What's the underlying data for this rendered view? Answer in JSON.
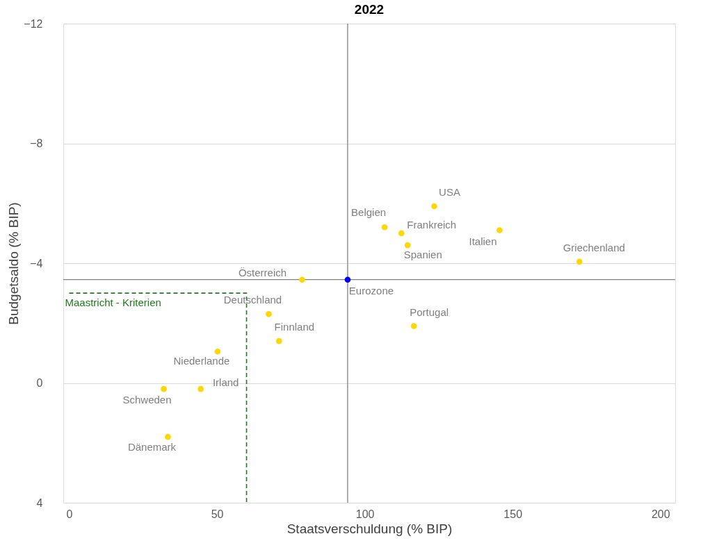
{
  "chart_data": {
    "type": "scatter",
    "title": "2022",
    "xlabel": "Staatsverschuldung (% BIP)",
    "ylabel": "Budgetsaldo (% BIP)",
    "xlim": [
      -2,
      205
    ],
    "xticks": [
      0,
      50,
      100,
      150,
      200
    ],
    "ylim": [
      4,
      -12
    ],
    "yticks": [
      4,
      0,
      -4,
      -8,
      -12
    ],
    "grid": "y",
    "marker": "circle",
    "series": [
      {
        "name": "USA",
        "color": "#ffd700",
        "x": [
          123.5
        ],
        "values": [
          -5.9
        ]
      },
      {
        "name": "Belgien",
        "color": "#ffd700",
        "x": [
          106.7
        ],
        "values": [
          -5.2
        ]
      },
      {
        "name": "Frankreich",
        "color": "#ffd700",
        "x": [
          112.4
        ],
        "values": [
          -5.0
        ]
      },
      {
        "name": "Spanien",
        "color": "#ffd700",
        "x": [
          114.5
        ],
        "values": [
          -4.6
        ]
      },
      {
        "name": "Italien",
        "color": "#ffd700",
        "x": [
          145.6
        ],
        "values": [
          -5.1
        ]
      },
      {
        "name": "Griechenland",
        "color": "#ffd700",
        "x": [
          172.6
        ],
        "values": [
          -4.05
        ]
      },
      {
        "name": "Österreich",
        "color": "#ffd700",
        "x": [
          78.8
        ],
        "values": [
          -3.45
        ]
      },
      {
        "name": "Eurozone",
        "color": "#0000ff",
        "x": [
          94.2
        ],
        "values": [
          -3.45
        ]
      },
      {
        "name": "Deutschland",
        "color": "#ffd700",
        "x": [
          67.5
        ],
        "values": [
          -2.3
        ]
      },
      {
        "name": "Finnland",
        "color": "#ffd700",
        "x": [
          71.0
        ],
        "values": [
          -1.4
        ]
      },
      {
        "name": "Portugal",
        "color": "#ffd700",
        "x": [
          116.6
        ],
        "values": [
          -1.9
        ]
      },
      {
        "name": "Niederlande",
        "color": "#ffd700",
        "x": [
          50.2
        ],
        "values": [
          -1.05
        ]
      },
      {
        "name": "Irland",
        "color": "#ffd700",
        "x": [
          44.5
        ],
        "values": [
          0.2
        ]
      },
      {
        "name": "Schweden",
        "color": "#ffd700",
        "x": [
          32.0
        ],
        "values": [
          0.2
        ]
      },
      {
        "name": "Dänemark",
        "color": "#ffd700",
        "x": [
          33.4
        ],
        "values": [
          1.8
        ]
      },
      {
        "name": "Maastricht - Kriterien",
        "type": "line",
        "line_style": "dashed",
        "marker": "none",
        "color": "#1e7b1e",
        "x": [
          0,
          60,
          60
        ],
        "values": [
          -3,
          -3,
          4
        ]
      }
    ],
    "ref_lines": [
      {
        "axis": "x",
        "value": 94.2,
        "color": "#808080"
      },
      {
        "axis": "y",
        "value": -3.45,
        "color": "#808080"
      }
    ]
  }
}
